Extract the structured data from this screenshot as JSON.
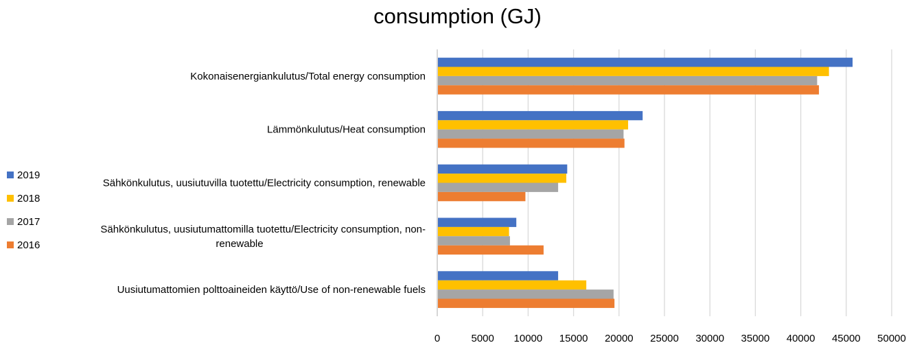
{
  "chart_data": {
    "type": "bar",
    "orientation": "horizontal",
    "title": "consumption (GJ)",
    "categories": [
      [
        "Kokonaisenergiankulutus/Total energy consumption"
      ],
      [
        "Lämmönkulutus/Heat consumption"
      ],
      [
        "Sähkönkulutus, uusiutuvilla tuotettu/Electricity consumption, renewable"
      ],
      [
        "Sähkönkulutus, uusiutumattomilla tuotettu/Electricity consumption, non-",
        "renewable"
      ],
      [
        "Uusiutumattomien polttoaineiden käyttö/Use of non-renewable fuels"
      ]
    ],
    "series": [
      {
        "name": "2019",
        "color": "#4472C4",
        "values": [
          45700,
          22600,
          14300,
          8700,
          13300
        ]
      },
      {
        "name": "2018",
        "color": "#FFC000",
        "values": [
          43100,
          21000,
          14200,
          7900,
          16400
        ]
      },
      {
        "name": "2017",
        "color": "#A5A5A5",
        "values": [
          41800,
          20500,
          13300,
          8000,
          19400
        ]
      },
      {
        "name": "2016",
        "color": "#ED7D31",
        "values": [
          42000,
          20600,
          9700,
          11700,
          19500
        ]
      }
    ],
    "xlim": [
      0,
      50000
    ],
    "xticks": [
      0,
      5000,
      10000,
      15000,
      20000,
      25000,
      30000,
      35000,
      40000,
      45000,
      50000
    ],
    "grid": "vertical",
    "legend_position": "left"
  }
}
